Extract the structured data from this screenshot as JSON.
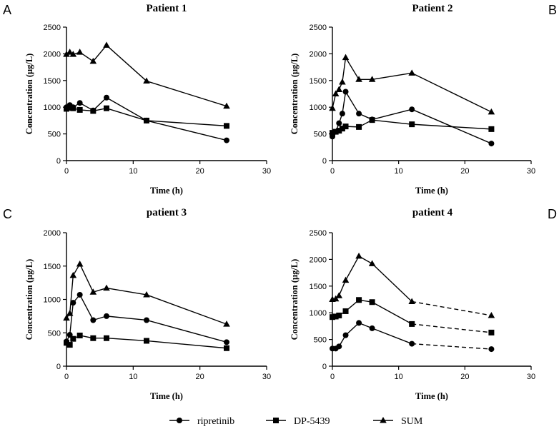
{
  "chart_data": [
    {
      "type": "line",
      "panel_label": "A",
      "title": "Patient 1",
      "xlabel": "Time (h)",
      "ylabel": "Concentration (μg/L)",
      "xlim": [
        0,
        30
      ],
      "ylim": [
        0,
        2500
      ],
      "xticks": [
        "0",
        "10",
        "20",
        "30"
      ],
      "yticks": [
        "0",
        "500",
        "1000",
        "1500",
        "2000",
        "2500"
      ],
      "series": [
        {
          "name": "ripretinib",
          "marker": "circle",
          "points": [
            [
              0,
              1000
            ],
            [
              0.5,
              1040
            ],
            [
              1,
              1000
            ],
            [
              2,
              1080
            ],
            [
              4,
              940
            ],
            [
              6,
              1180
            ],
            [
              12,
              750
            ],
            [
              24,
              380
            ]
          ]
        },
        {
          "name": "DP-5439",
          "marker": "square",
          "points": [
            [
              0,
              970
            ],
            [
              0.5,
              990
            ],
            [
              1,
              980
            ],
            [
              2,
              950
            ],
            [
              4,
              930
            ],
            [
              6,
              980
            ],
            [
              12,
              750
            ],
            [
              24,
              650
            ]
          ]
        },
        {
          "name": "SUM",
          "marker": "triangle",
          "points": [
            [
              0,
              1990
            ],
            [
              0.5,
              2030
            ],
            [
              1,
              1990
            ],
            [
              2,
              2030
            ],
            [
              4,
              1860
            ],
            [
              6,
              2160
            ],
            [
              12,
              1490
            ],
            [
              24,
              1020
            ]
          ]
        }
      ]
    },
    {
      "type": "line",
      "panel_label": "B",
      "title": "Patient 2",
      "xlabel": "Time (h)",
      "ylabel": "Concentration (μg/L)",
      "xlim": [
        0,
        30
      ],
      "ylim": [
        0,
        2500
      ],
      "xticks": [
        "0",
        "10",
        "20",
        "30"
      ],
      "yticks": [
        "0",
        "500",
        "1000",
        "1500",
        "2000",
        "2500"
      ],
      "series": [
        {
          "name": "ripretinib",
          "marker": "circle",
          "points": [
            [
              0,
              450
            ],
            [
              0.5,
              540
            ],
            [
              1,
              700
            ],
            [
              1.5,
              880
            ],
            [
              2,
              1290
            ],
            [
              4,
              880
            ],
            [
              6,
              770
            ],
            [
              12,
              960
            ],
            [
              24,
              320
            ]
          ]
        },
        {
          "name": "DP-5439",
          "marker": "square",
          "points": [
            [
              0,
              520
            ],
            [
              0.5,
              540
            ],
            [
              1,
              560
            ],
            [
              1.5,
              600
            ],
            [
              2,
              640
            ],
            [
              4,
              630
            ],
            [
              6,
              760
            ],
            [
              12,
              680
            ],
            [
              24,
              590
            ]
          ]
        },
        {
          "name": "SUM",
          "marker": "triangle",
          "points": [
            [
              0,
              980
            ],
            [
              0.5,
              1250
            ],
            [
              1,
              1330
            ],
            [
              1.5,
              1470
            ],
            [
              2,
              1930
            ],
            [
              4,
              1520
            ],
            [
              6,
              1520
            ],
            [
              12,
              1640
            ],
            [
              24,
              910
            ]
          ]
        }
      ]
    },
    {
      "type": "line",
      "panel_label": "C",
      "title": "patient 3",
      "xlabel": "Time (h)",
      "ylabel": "Concentration (μg/L)",
      "xlim": [
        0,
        30
      ],
      "ylim": [
        0,
        2000
      ],
      "xticks": [
        "0",
        "10",
        "20",
        "30"
      ],
      "yticks": [
        "0",
        "500",
        "1000",
        "1500",
        "2000"
      ],
      "series": [
        {
          "name": "ripretinib",
          "marker": "circle",
          "points": [
            [
              0,
              370
            ],
            [
              0.5,
              470
            ],
            [
              1,
              950
            ],
            [
              2,
              1070
            ],
            [
              4,
              690
            ],
            [
              6,
              750
            ],
            [
              12,
              690
            ],
            [
              24,
              360
            ]
          ]
        },
        {
          "name": "DP-5439",
          "marker": "square",
          "points": [
            [
              0,
              350
            ],
            [
              0.5,
              320
            ],
            [
              1,
              410
            ],
            [
              2,
              460
            ],
            [
              4,
              420
            ],
            [
              6,
              420
            ],
            [
              12,
              380
            ],
            [
              24,
              270
            ]
          ]
        },
        {
          "name": "SUM",
          "marker": "triangle",
          "points": [
            [
              0,
              720
            ],
            [
              0.5,
              790
            ],
            [
              1,
              1360
            ],
            [
              2,
              1530
            ],
            [
              4,
              1110
            ],
            [
              6,
              1170
            ],
            [
              12,
              1070
            ],
            [
              24,
              630
            ]
          ]
        }
      ]
    },
    {
      "type": "line",
      "panel_label": "D",
      "title": "patient 4",
      "xlabel": "Time (h)",
      "ylabel": "Concentration (μg/L)",
      "xlim": [
        0,
        30
      ],
      "ylim": [
        0,
        2500
      ],
      "xticks": [
        "0",
        "10",
        "20",
        "30"
      ],
      "yticks": [
        "0",
        "500",
        "1000",
        "1500",
        "2000",
        "2500"
      ],
      "dashed_from_x": 12,
      "series": [
        {
          "name": "ripretinib",
          "marker": "circle",
          "points": [
            [
              0,
              330
            ],
            [
              0.5,
              330
            ],
            [
              1,
              370
            ],
            [
              2,
              580
            ],
            [
              4,
              810
            ],
            [
              6,
              710
            ],
            [
              12,
              420
            ],
            [
              24,
              320
            ]
          ]
        },
        {
          "name": "DP-5439",
          "marker": "square",
          "points": [
            [
              0,
              920
            ],
            [
              0.5,
              930
            ],
            [
              1,
              950
            ],
            [
              2,
              1030
            ],
            [
              4,
              1240
            ],
            [
              6,
              1200
            ],
            [
              12,
              790
            ],
            [
              24,
              630
            ]
          ]
        },
        {
          "name": "SUM",
          "marker": "triangle",
          "points": [
            [
              0,
              1250
            ],
            [
              0.5,
              1260
            ],
            [
              1,
              1320
            ],
            [
              2,
              1610
            ],
            [
              4,
              2060
            ],
            [
              6,
              1920
            ],
            [
              12,
              1210
            ],
            [
              24,
              950
            ]
          ]
        }
      ]
    }
  ],
  "legend": {
    "items": [
      {
        "label": "ripretinib",
        "marker": "circle"
      },
      {
        "label": "DP-5439",
        "marker": "square"
      },
      {
        "label": "SUM",
        "marker": "triangle"
      }
    ]
  }
}
